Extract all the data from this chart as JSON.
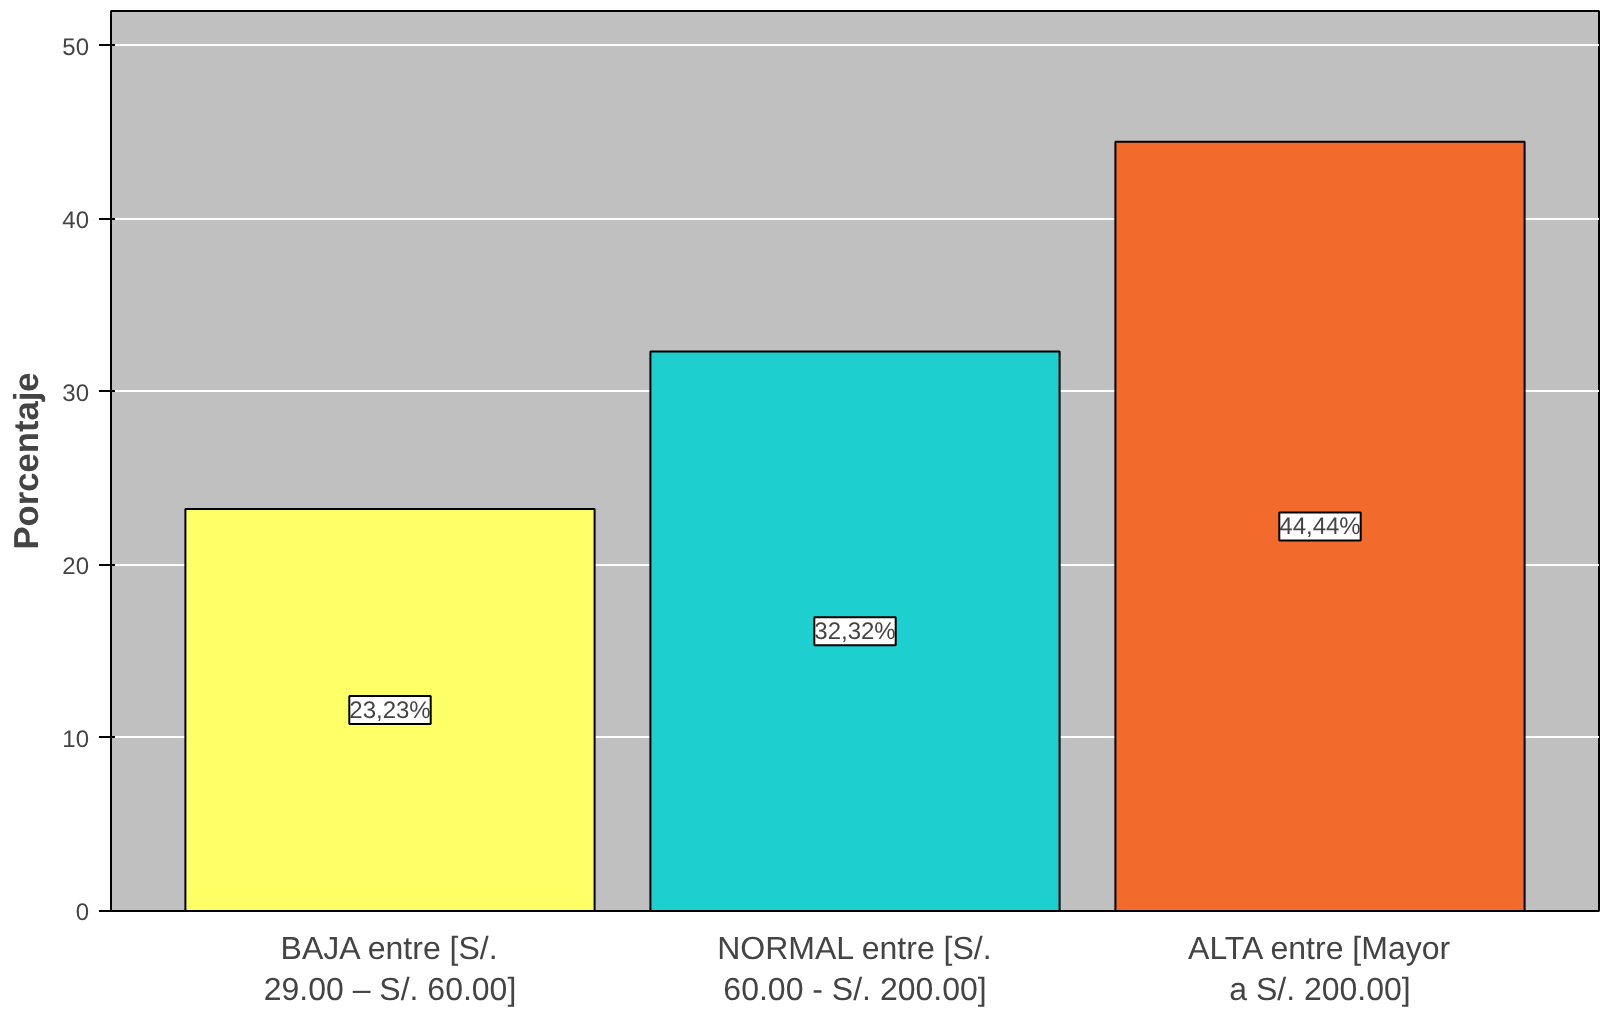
{
  "chart_data": {
    "type": "bar",
    "ylabel": "Porcentaje",
    "categories": [
      "BAJA entre [S/.\n29.00 – S/. 60.00]",
      "NORMAL entre [S/.\n60.00 - S/. 200.00]",
      "ALTA entre [Mayor\na S/. 200.00]"
    ],
    "values": [
      23.23,
      32.32,
      44.44
    ],
    "colors": [
      "#ffff66",
      "#1ecfcf",
      "#f26a2c"
    ],
    "value_labels": [
      "23,23%",
      "32,32%",
      "44,44%"
    ],
    "ylim": [
      0,
      52
    ],
    "yticks": [
      0,
      10,
      20,
      30,
      40,
      50
    ],
    "grid": "y"
  }
}
